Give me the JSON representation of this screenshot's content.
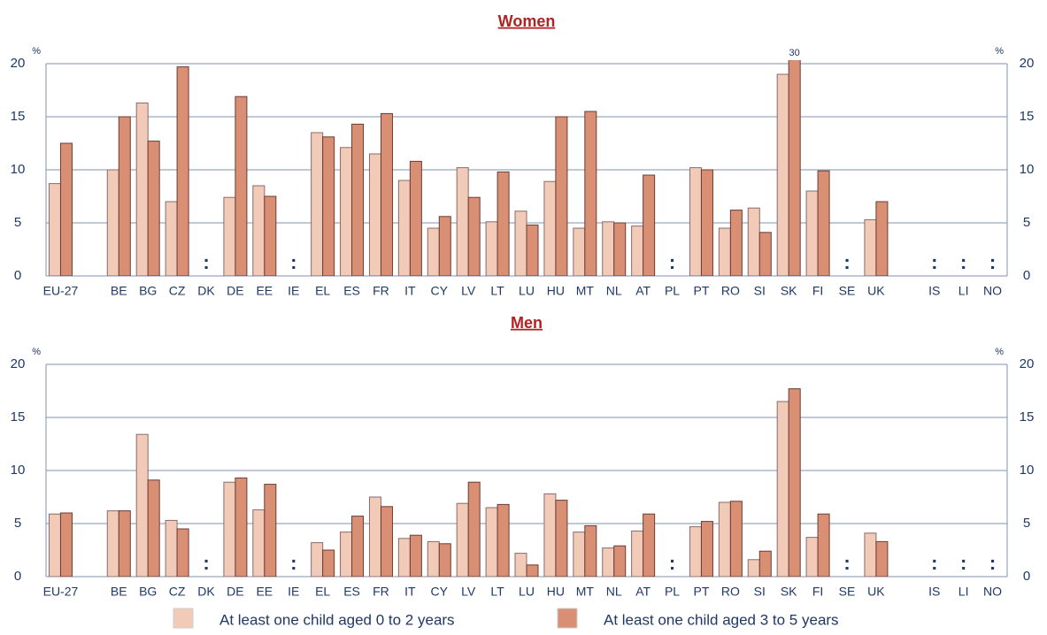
{
  "chart_data": [
    {
      "type": "bar",
      "title": "Women",
      "y_unit": "%",
      "missing_label": ":",
      "categories": [
        "EU-27",
        null,
        "BE",
        "BG",
        "CZ",
        "DK",
        "DE",
        "EE",
        "IE",
        "EL",
        "ES",
        "FR",
        "IT",
        "CY",
        "LV",
        "LT",
        "LU",
        "HU",
        "MT",
        "NL",
        "AT",
        "PL",
        "PT",
        "RO",
        "SI",
        "SK",
        "FI",
        "SE",
        "UK",
        null,
        "IS",
        "LI",
        "NO"
      ],
      "series": [
        {
          "name": "At least one child aged 0 to 2 years",
          "color": "#f2cbb8",
          "values": [
            8.7,
            null,
            10,
            16.3,
            7,
            null,
            7.4,
            8.5,
            null,
            13.5,
            12.1,
            11.5,
            9,
            4.5,
            10.2,
            5.1,
            6.1,
            8.9,
            4.5,
            5.1,
            4.7,
            null,
            10.2,
            4.5,
            6.4,
            19,
            8,
            null,
            5.3,
            null,
            null,
            null,
            null
          ]
        },
        {
          "name": "At least one child aged 3 to 5 years",
          "color": "#d98f74",
          "values": [
            12.5,
            null,
            15,
            12.7,
            19.7,
            null,
            16.9,
            7.5,
            null,
            13.1,
            14.3,
            15.3,
            10.8,
            5.6,
            7.4,
            9.8,
            4.8,
            15,
            15.5,
            5,
            9.5,
            null,
            10,
            6.2,
            4.1,
            30,
            9.9,
            null,
            7,
            null,
            null,
            null,
            null
          ],
          "value_labels": [
            null,
            null,
            null,
            null,
            null,
            null,
            null,
            null,
            null,
            null,
            null,
            null,
            null,
            null,
            null,
            null,
            null,
            null,
            null,
            null,
            null,
            null,
            null,
            null,
            null,
            "30",
            null,
            null,
            null,
            null,
            null,
            null,
            null
          ]
        }
      ],
      "ylim": [
        0,
        20
      ],
      "yticks": [
        0,
        5,
        10,
        15,
        20
      ],
      "grid": true
    },
    {
      "type": "bar",
      "title": "Men",
      "y_unit": "%",
      "missing_label": ":",
      "categories": [
        "EU-27",
        null,
        "BE",
        "BG",
        "CZ",
        "DK",
        "DE",
        "EE",
        "IE",
        "EL",
        "ES",
        "FR",
        "IT",
        "CY",
        "LV",
        "LT",
        "LU",
        "HU",
        "MT",
        "NL",
        "AT",
        "PL",
        "PT",
        "RO",
        "SI",
        "SK",
        "FI",
        "SE",
        "UK",
        null,
        "IS",
        "LI",
        "NO"
      ],
      "series": [
        {
          "name": "At least one child aged 0 to 2 years",
          "color": "#f2cbb8",
          "values": [
            5.9,
            null,
            6.2,
            13.4,
            5.3,
            null,
            8.9,
            6.3,
            null,
            3.2,
            4.2,
            7.5,
            3.6,
            3.3,
            6.9,
            6.5,
            2.2,
            7.8,
            4.2,
            2.7,
            4.3,
            null,
            4.7,
            7,
            1.6,
            16.5,
            3.7,
            null,
            4.1,
            null,
            null,
            null,
            null
          ]
        },
        {
          "name": "At least one child aged 3 to 5 years",
          "color": "#d98f74",
          "values": [
            6,
            null,
            6.2,
            9.1,
            4.5,
            null,
            9.3,
            8.7,
            null,
            2.5,
            5.7,
            6.6,
            3.9,
            3.1,
            8.9,
            6.8,
            1.1,
            7.2,
            4.8,
            2.9,
            5.9,
            null,
            5.2,
            7.1,
            2.4,
            17.7,
            5.9,
            null,
            3.3,
            null,
            null,
            null,
            null
          ]
        }
      ],
      "ylim": [
        0,
        20
      ],
      "yticks": [
        0,
        5,
        10,
        15,
        20
      ],
      "grid": true
    }
  ]
}
